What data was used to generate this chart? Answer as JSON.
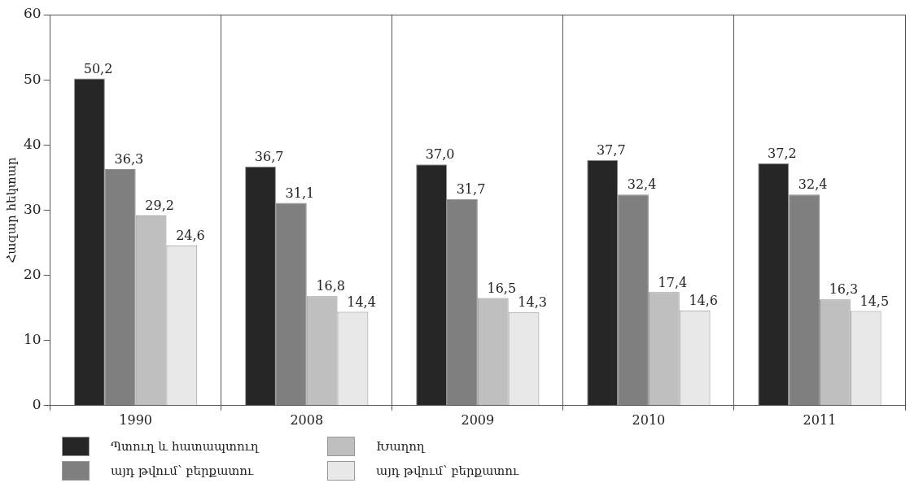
{
  "chart_data": {
    "type": "bar",
    "ylabel": "Հազար հեկտար",
    "categories": [
      "1990",
      "2008",
      "2009",
      "2010",
      "2011"
    ],
    "series": [
      {
        "name": "Պտուղ և հատապտուղ",
        "color": "#262626",
        "values": [
          50.2,
          36.7,
          37.0,
          37.7,
          37.2
        ],
        "value_labels": [
          "50,2",
          "36,7",
          "37,0",
          "37,7",
          "37,2"
        ]
      },
      {
        "name": "այդ թվում՝ բերքատու",
        "color": "#7f7f7f",
        "values": [
          36.3,
          31.1,
          31.7,
          32.4,
          32.4
        ],
        "value_labels": [
          "36,3",
          "31,1",
          "31,7",
          "32,4",
          "32,4"
        ]
      },
      {
        "name": "Խաղող",
        "color": "#bfbfbf",
        "values": [
          29.2,
          16.8,
          16.5,
          17.4,
          16.3
        ],
        "value_labels": [
          "29,2",
          "16,8",
          "16,5",
          "17,4",
          "16,3"
        ]
      },
      {
        "name": "այդ թվում՝ բերքատու",
        "color": "#e8e8e8",
        "values": [
          24.6,
          14.4,
          14.3,
          14.6,
          14.5
        ],
        "value_labels": [
          "24,6",
          "14,4",
          "14,3",
          "14,6",
          "14,5"
        ]
      }
    ],
    "ylim": [
      0,
      60
    ],
    "yticks": [
      0,
      10,
      20,
      30,
      40,
      50,
      60
    ],
    "grid": "x",
    "legend": "bottom left"
  }
}
